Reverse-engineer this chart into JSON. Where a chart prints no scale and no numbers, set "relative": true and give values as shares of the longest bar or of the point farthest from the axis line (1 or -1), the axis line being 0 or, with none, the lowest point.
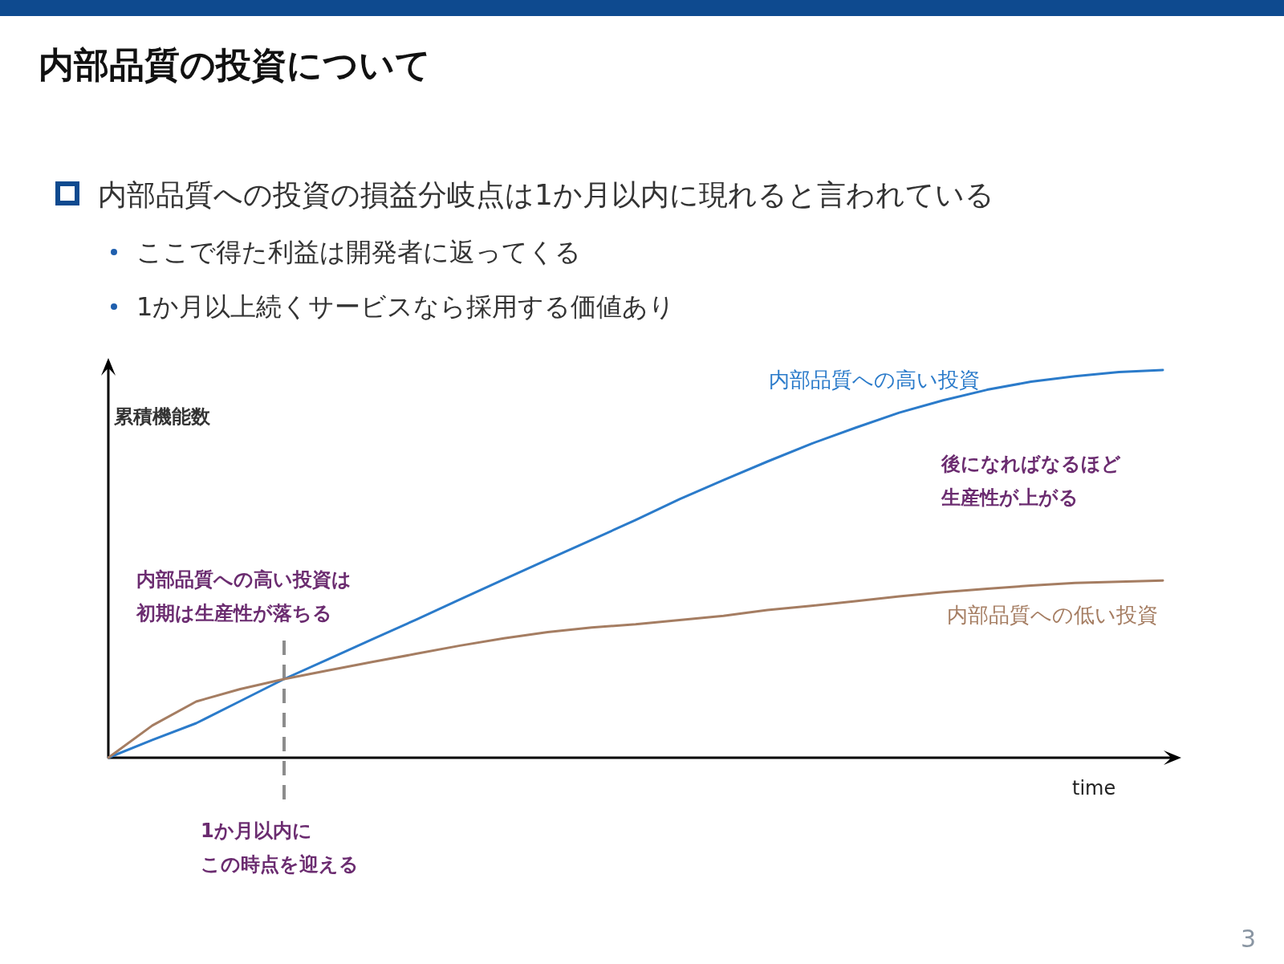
{
  "chart_data": {
    "type": "line",
    "relative": true,
    "title": "内部品質の投資について",
    "subtitle": "内部品質への投資の損益分岐点は1か月以内に現れると言われている",
    "xlabel": "time",
    "ylabel": "累積機能数",
    "categories": [
      null,
      null,
      null,
      null,
      null,
      null,
      null,
      null,
      null,
      null,
      null,
      null,
      null,
      null,
      null,
      null,
      null,
      null,
      null,
      null,
      null,
      null,
      null,
      null,
      null
    ],
    "series": [
      {
        "name": "内部品質への高い投資",
        "color": "#2b7bca",
        "values": [
          0,
          0.046,
          0.089,
          0.146,
          0.203,
          0.254,
          0.305,
          0.356,
          0.408,
          0.46,
          0.511,
          0.562,
          0.613,
          0.667,
          0.716,
          0.764,
          0.81,
          0.851,
          0.89,
          0.922,
          0.949,
          0.97,
          0.984,
          0.995,
          1.0
        ]
      },
      {
        "name": "内部品質への低い投資",
        "color": "#a57d62",
        "values": [
          0,
          0.083,
          0.145,
          0.177,
          0.203,
          0.225,
          0.247,
          0.268,
          0.289,
          0.308,
          0.324,
          0.336,
          0.344,
          0.355,
          0.366,
          0.381,
          0.392,
          0.404,
          0.416,
          0.427,
          0.436,
          0.444,
          0.451,
          0.454,
          0.457
        ]
      }
    ],
    "annotations": [
      "ここで得た利益は開発者に返ってくる",
      "1か月以上続くサービスなら採用する価値あり",
      "内部品質への高い投資は",
      "初期は生産性が落ちる",
      "後になればなるほど",
      "生産性が上がる",
      "1か月以内に",
      "この時点を迎える",
      "3"
    ]
  }
}
